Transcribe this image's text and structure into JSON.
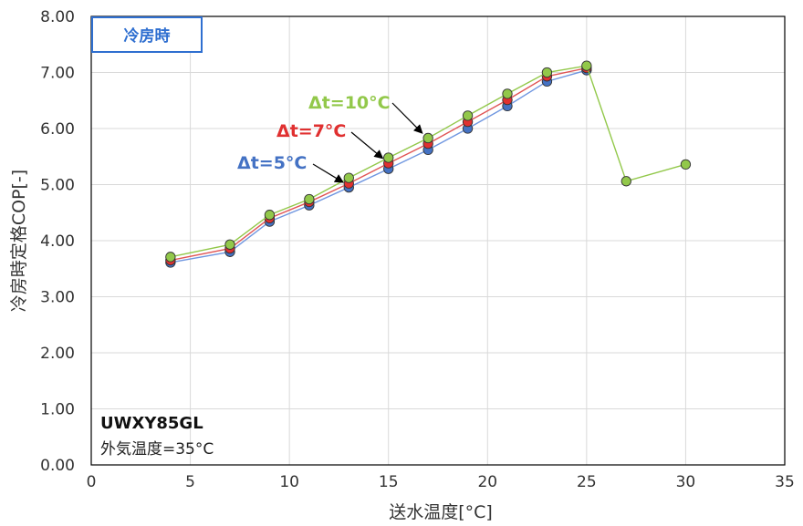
{
  "chart_data": {
    "type": "line",
    "badge": "冷房時",
    "xlabel": "送水温度[°C]",
    "ylabel": "冷房時定格COP[-]",
    "xlim": [
      0,
      35
    ],
    "ylim": [
      0,
      8
    ],
    "xticks": [
      0,
      5,
      10,
      15,
      20,
      25,
      30,
      35
    ],
    "yticks": [
      "0.00",
      "1.00",
      "2.00",
      "3.00",
      "4.00",
      "5.00",
      "6.00",
      "7.00",
      "8.00"
    ],
    "grid": true,
    "model": "UWXY85GL",
    "condition": "外気温度=35°C",
    "series": [
      {
        "name": "Δt=5°C",
        "color": "#4472c4",
        "stroke": "#6f96e0",
        "x": [
          4,
          7,
          9,
          11,
          13,
          15,
          17,
          19,
          21,
          23,
          25
        ],
        "y": [
          3.61,
          3.8,
          4.34,
          4.63,
          4.95,
          5.28,
          5.62,
          6.0,
          6.4,
          6.84,
          7.04
        ]
      },
      {
        "name": "Δt=7°C",
        "color": "#e03030",
        "stroke": "#e05555",
        "x": [
          4,
          7,
          9,
          11,
          13,
          15,
          17,
          19,
          21,
          23,
          25
        ],
        "y": [
          3.65,
          3.86,
          4.4,
          4.69,
          5.02,
          5.38,
          5.73,
          6.12,
          6.51,
          6.93,
          7.08
        ]
      },
      {
        "name": "Δt=10°C",
        "color": "#92c84a",
        "stroke": "#92c84a",
        "x": [
          4,
          7,
          9,
          11,
          13,
          15,
          17,
          19,
          21,
          23,
          25,
          27,
          30
        ],
        "y": [
          3.71,
          3.93,
          4.46,
          4.74,
          5.12,
          5.48,
          5.83,
          6.23,
          6.62,
          7.0,
          7.12,
          5.06,
          5.36
        ]
      }
    ],
    "annotations": [
      {
        "text": "Δt=10°C",
        "color": "#92c84a",
        "arrow_to": [
          17,
          5.83
        ]
      },
      {
        "text": "Δt=7°C",
        "color": "#e03030",
        "arrow_to": [
          15,
          5.38
        ]
      },
      {
        "text": "Δt=5°C",
        "color": "#4472c4",
        "arrow_to": [
          13,
          4.95
        ]
      }
    ]
  }
}
